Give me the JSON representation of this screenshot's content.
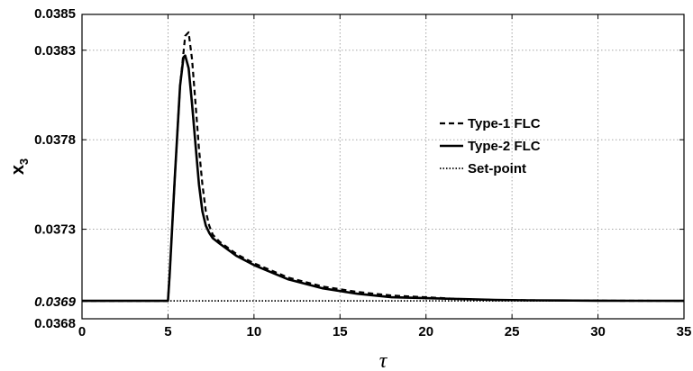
{
  "chart_data": {
    "type": "line",
    "xlabel": "τ",
    "ylabel": {
      "base": "x",
      "sub": "3"
    },
    "xlim": [
      0,
      35
    ],
    "ylim": [
      0.0368,
      0.0385
    ],
    "xticks": [
      0,
      5,
      10,
      15,
      20,
      25,
      30,
      35
    ],
    "yticks": [
      {
        "value": 0.0368,
        "label": "0.0368",
        "special": false
      },
      {
        "value": 0.0369,
        "label": "0.0369",
        "special": true
      },
      {
        "value": 0.0373,
        "label": "0.0373",
        "special": false
      },
      {
        "value": 0.0378,
        "label": "0.0378",
        "special": false
      },
      {
        "value": 0.0383,
        "label": "0.0383",
        "special": false
      },
      {
        "value": 0.0385,
        "label": "0.0385",
        "special": false
      }
    ],
    "grid": true,
    "legend_position": "right",
    "series": [
      {
        "name": "Type-1 FLC",
        "style": "dashed",
        "x": [
          0,
          5,
          5.1,
          5.4,
          5.7,
          6.0,
          6.2,
          6.4,
          6.6,
          6.8,
          7.0,
          7.2,
          7.4,
          7.6,
          8,
          9,
          10,
          12,
          14,
          16,
          18,
          20,
          22,
          24,
          26,
          28,
          30,
          32,
          35
        ],
        "y": [
          0.0369,
          0.0369,
          0.03705,
          0.0376,
          0.0381,
          0.03838,
          0.0384,
          0.03825,
          0.038,
          0.03775,
          0.03755,
          0.0374,
          0.03732,
          0.03727,
          0.03723,
          0.03716,
          0.03711,
          0.03703,
          0.03698,
          0.03695,
          0.03693,
          0.03692,
          0.03691,
          0.036905,
          0.036903,
          0.036902,
          0.036901,
          0.0369005,
          0.0369
        ]
      },
      {
        "name": "Type-2 FLC",
        "style": "solid",
        "x": [
          0,
          5,
          5.1,
          5.4,
          5.7,
          5.9,
          6.0,
          6.2,
          6.4,
          6.6,
          6.8,
          7.0,
          7.2,
          7.4,
          7.6,
          8,
          9,
          10,
          12,
          14,
          16,
          18,
          20,
          22,
          24,
          26,
          28,
          30,
          32,
          35
        ],
        "y": [
          0.0369,
          0.0369,
          0.03705,
          0.0376,
          0.0381,
          0.03826,
          0.03827,
          0.0382,
          0.038,
          0.03777,
          0.03755,
          0.0374,
          0.03732,
          0.03728,
          0.03725,
          0.03722,
          0.03715,
          0.0371,
          0.03702,
          0.03697,
          0.03694,
          0.03692,
          0.036915,
          0.03691,
          0.036905,
          0.036903,
          0.036902,
          0.036901,
          0.0369005,
          0.0369
        ]
      },
      {
        "name": "Set-point",
        "style": "dotted",
        "x": [
          0,
          35
        ],
        "y": [
          0.0369,
          0.0369
        ]
      }
    ]
  }
}
